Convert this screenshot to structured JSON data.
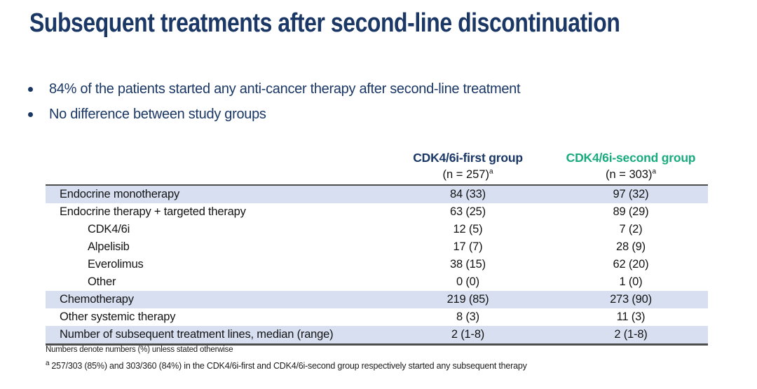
{
  "title": "Subsequent treatments after second-line discontinuation",
  "bullets": [
    "84% of the patients started any anti-cancer therapy after second-line treatment",
    "No difference between study groups"
  ],
  "table": {
    "columns": [
      {
        "name": "CDK4/6i-first group",
        "n": "(n = 257)",
        "footnote_mark": "a",
        "color": "#1A3765"
      },
      {
        "name": "CDK4/6i-second group",
        "n": "(n = 303)",
        "footnote_mark": "a",
        "color": "#19AB7E"
      }
    ],
    "rows": [
      {
        "label": "Endocrine monotherapy",
        "indent": false,
        "values": [
          "84 (33)",
          "97 (32)"
        ],
        "highlight": true
      },
      {
        "label": "Endocrine therapy + targeted therapy",
        "indent": false,
        "values": [
          "63 (25)",
          "89 (29)"
        ],
        "highlight": false
      },
      {
        "label": "CDK4/6i",
        "indent": true,
        "values": [
          "12 (5)",
          "7 (2)"
        ],
        "highlight": false
      },
      {
        "label": "Alpelisib",
        "indent": true,
        "values": [
          "17 (7)",
          "28 (9)"
        ],
        "highlight": false
      },
      {
        "label": "Everolimus",
        "indent": true,
        "values": [
          "38 (15)",
          "62 (20)"
        ],
        "highlight": false
      },
      {
        "label": "Other",
        "indent": true,
        "values": [
          "0 (0)",
          "1 (0)"
        ],
        "highlight": false
      },
      {
        "label": "Chemotherapy",
        "indent": false,
        "values": [
          "219 (85)",
          "273 (90)"
        ],
        "highlight": true
      },
      {
        "label": "Other systemic therapy",
        "indent": false,
        "values": [
          "8 (3)",
          "11 (3)"
        ],
        "highlight": false
      },
      {
        "label": "Number of subsequent treatment lines, median (range)",
        "indent": false,
        "values": [
          "2 (1-8)",
          "2 (1-8)"
        ],
        "highlight": true
      }
    ]
  },
  "footnotes": {
    "general": "Numbers denote numbers (%) unless stated otherwise",
    "a_mark": "a",
    "a_text": "257/303 (85%) and 303/360 (84%) in the CDK4/6i-first and CDK4/6i-second group respectively started any subsequent therapy"
  },
  "colors": {
    "title_navy": "#1A3765",
    "group_first_navy": "#1A3765",
    "group_second_green": "#19AB7E",
    "row_highlight_blue": "#D7DFF1",
    "table_border_gray": "#4D4D4D"
  }
}
